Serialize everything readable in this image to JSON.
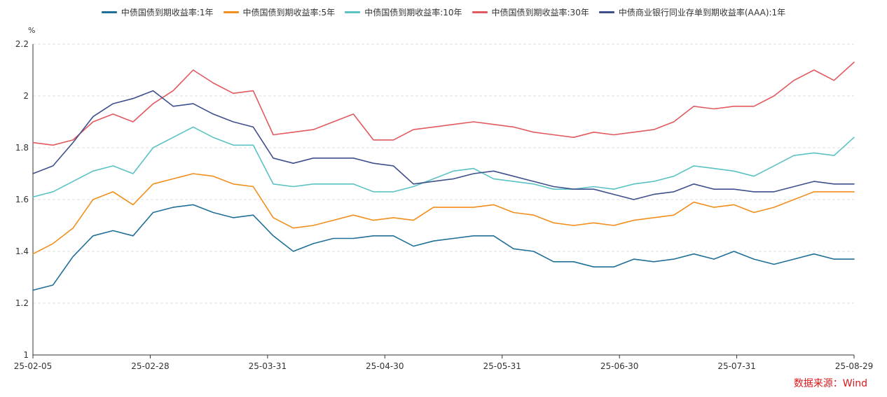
{
  "unit": "%",
  "source": "数据来源：Wind",
  "chart_data": {
    "type": "line",
    "ylim": [
      1,
      2.2
    ],
    "yticks": [
      "1",
      "1.2",
      "1.4",
      "1.6",
      "1.8",
      "2",
      "2.2"
    ],
    "xticks": [
      "25-02-05",
      "25-02-28",
      "25-03-31",
      "25-04-30",
      "25-05-31",
      "25-06-30",
      "25-07-31",
      "25-08-29"
    ],
    "grid": true,
    "legend_position": "top",
    "x": [
      "02-05",
      "02-10",
      "02-15",
      "02-20",
      "02-25",
      "02-28",
      "03-05",
      "03-10",
      "03-15",
      "03-20",
      "03-25",
      "03-31",
      "04-05",
      "04-10",
      "04-15",
      "04-20",
      "04-25",
      "04-30",
      "05-05",
      "05-10",
      "05-15",
      "05-20",
      "05-25",
      "05-31",
      "06-05",
      "06-10",
      "06-15",
      "06-20",
      "06-25",
      "06-30",
      "07-05",
      "07-10",
      "07-15",
      "07-20",
      "07-25",
      "07-31",
      "08-05",
      "08-10",
      "08-15",
      "08-20",
      "08-25",
      "08-29"
    ],
    "series": [
      {
        "name": "中债国债到期收益率:1年",
        "color": "#1f6f97",
        "values": [
          1.25,
          1.27,
          1.38,
          1.46,
          1.48,
          1.46,
          1.55,
          1.57,
          1.58,
          1.55,
          1.53,
          1.54,
          1.46,
          1.4,
          1.43,
          1.45,
          1.45,
          1.46,
          1.46,
          1.42,
          1.44,
          1.45,
          1.46,
          1.46,
          1.41,
          1.4,
          1.36,
          1.36,
          1.34,
          1.34,
          1.37,
          1.36,
          1.37,
          1.39,
          1.37,
          1.4,
          1.37,
          1.35,
          1.37,
          1.39,
          1.37,
          1.37
        ]
      },
      {
        "name": "中债国债到期收益率:5年",
        "color": "#f28e1c",
        "values": [
          1.39,
          1.43,
          1.49,
          1.6,
          1.63,
          1.58,
          1.66,
          1.68,
          1.7,
          1.69,
          1.66,
          1.65,
          1.53,
          1.49,
          1.5,
          1.52,
          1.54,
          1.52,
          1.53,
          1.52,
          1.57,
          1.57,
          1.57,
          1.58,
          1.55,
          1.54,
          1.51,
          1.5,
          1.51,
          1.5,
          1.52,
          1.53,
          1.54,
          1.59,
          1.57,
          1.58,
          1.55,
          1.57,
          1.6,
          1.63,
          1.63,
          1.63
        ]
      },
      {
        "name": "中债国债到期收益率:10年",
        "color": "#5bc2c4",
        "values": [
          1.61,
          1.63,
          1.67,
          1.71,
          1.73,
          1.7,
          1.8,
          1.84,
          1.88,
          1.84,
          1.81,
          1.81,
          1.66,
          1.65,
          1.66,
          1.66,
          1.66,
          1.63,
          1.63,
          1.65,
          1.68,
          1.71,
          1.72,
          1.68,
          1.67,
          1.66,
          1.64,
          1.64,
          1.65,
          1.64,
          1.66,
          1.67,
          1.69,
          1.73,
          1.72,
          1.71,
          1.69,
          1.73,
          1.77,
          1.78,
          1.77,
          1.84
        ]
      },
      {
        "name": "中债国债到期收益率:30年",
        "color": "#e05a5f",
        "values": [
          1.82,
          1.81,
          1.83,
          1.9,
          1.93,
          1.9,
          1.97,
          2.02,
          2.1,
          2.05,
          2.01,
          2.02,
          1.85,
          1.86,
          1.87,
          1.9,
          1.93,
          1.83,
          1.83,
          1.87,
          1.88,
          1.89,
          1.9,
          1.89,
          1.88,
          1.86,
          1.85,
          1.84,
          1.86,
          1.85,
          1.86,
          1.87,
          1.9,
          1.96,
          1.95,
          1.96,
          1.96,
          2.0,
          2.06,
          2.1,
          2.06,
          2.13
        ]
      },
      {
        "name": "中债商业银行同业存单到期收益率(AAA):1年",
        "color": "#3f4f8c",
        "values": [
          1.7,
          1.73,
          1.82,
          1.92,
          1.97,
          1.99,
          2.02,
          1.96,
          1.97,
          1.93,
          1.9,
          1.88,
          1.76,
          1.74,
          1.76,
          1.76,
          1.76,
          1.74,
          1.73,
          1.66,
          1.67,
          1.68,
          1.7,
          1.71,
          1.69,
          1.67,
          1.65,
          1.64,
          1.64,
          1.62,
          1.6,
          1.62,
          1.63,
          1.66,
          1.64,
          1.64,
          1.63,
          1.63,
          1.65,
          1.67,
          1.66,
          1.66
        ]
      }
    ]
  }
}
